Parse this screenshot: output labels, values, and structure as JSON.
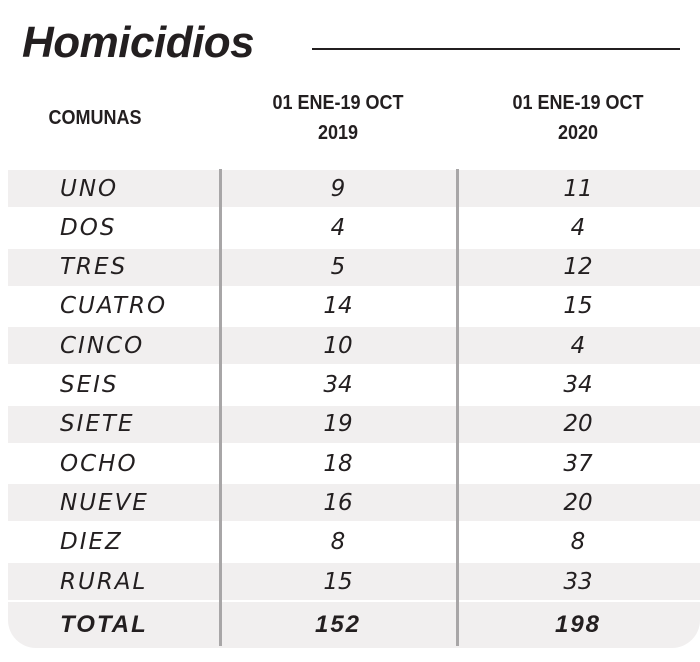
{
  "title": "Homicidios",
  "chart_data": {
    "type": "table",
    "columns": [
      "COMUNAS",
      "01 ENE-19 OCT 2019",
      "01 ENE-19 OCT 2020"
    ],
    "header": {
      "c0": "COMUNAS",
      "c1_line1": "01 ENE-19 OCT",
      "c1_line2": "2019",
      "c2_line1": "01 ENE-19 OCT",
      "c2_line2": "2020"
    },
    "rows": [
      [
        "UNO",
        "9",
        "11"
      ],
      [
        "DOS",
        "4",
        "4"
      ],
      [
        "TRES",
        "5",
        "12"
      ],
      [
        "CUATRO",
        "14",
        "15"
      ],
      [
        "CINCO",
        "10",
        "4"
      ],
      [
        "SEIS",
        "34",
        "34"
      ],
      [
        "SIETE",
        "19",
        "20"
      ],
      [
        "OCHO",
        "18",
        "37"
      ],
      [
        "NUEVE",
        "16",
        "20"
      ],
      [
        "DIEZ",
        "8",
        "8"
      ],
      [
        "RURAL",
        "15",
        "33"
      ]
    ],
    "total": [
      "TOTAL",
      "152",
      "198"
    ]
  },
  "colors": {
    "text": "#231f20",
    "stripe": "#f1efef",
    "divider": "#a8a6a7"
  }
}
